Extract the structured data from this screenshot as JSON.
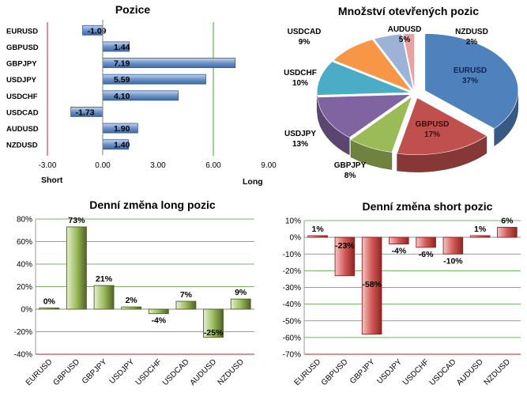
{
  "chart_data": [
    {
      "type": "bar",
      "orientation": "horizontal",
      "title": "Pozice",
      "categories": [
        "EURUSD",
        "GBPUSD",
        "GBPJPY",
        "USDJPY",
        "USDCHF",
        "USDCAD",
        "AUDUSD",
        "NZDUSD"
      ],
      "values": [
        -1.09,
        1.44,
        7.19,
        5.59,
        4.1,
        -1.73,
        1.9,
        1.4
      ],
      "value_labels": [
        "-1.09",
        "1.44",
        "7.19",
        "5.59",
        "4.10",
        "-1.73",
        "1.90",
        "1.40"
      ],
      "xlim": [
        -3,
        9
      ],
      "xticks": [
        "-3.00",
        "0.00",
        "3.00",
        "6.00",
        "9.00"
      ],
      "xtick_values": [
        -3,
        0,
        3,
        6,
        9
      ],
      "left_label": "Short",
      "right_label": "Long",
      "bar_color": "#4f81bd",
      "short_line_color": "#c0504d",
      "long_line_color": "#4f9a3a"
    },
    {
      "type": "pie",
      "title": "Množství otevřených pozic",
      "labels": [
        "EURUSD",
        "GBPUSD",
        "GBPJPY",
        "USDJPY",
        "USDCHF",
        "USDCAD",
        "AUDUSD",
        "NZDUSD"
      ],
      "values": [
        37,
        17,
        8,
        13,
        10,
        9,
        5,
        2
      ],
      "value_labels": [
        "37%",
        "17%",
        "8%",
        "13%",
        "10%",
        "9%",
        "5%",
        "2%"
      ],
      "colors": [
        "#4f81bd",
        "#c0504d",
        "#9bbb59",
        "#8064a2",
        "#4bacc6",
        "#f79646",
        "#9db3d6",
        "#e6a3a2"
      ]
    },
    {
      "type": "bar",
      "title": "Denní změna long pozic",
      "categories": [
        "EURUSD",
        "GBPUSD",
        "GBPJPY",
        "USDJPY",
        "USDCHF",
        "USDCAD",
        "AUDUSD",
        "NZDUSD"
      ],
      "values": [
        0,
        73,
        21,
        2,
        -4,
        7,
        -25,
        9
      ],
      "value_labels": [
        "0%",
        "73%",
        "21%",
        "2%",
        "-4%",
        "7%",
        "-25%",
        "9%"
      ],
      "ylim": [
        -40,
        80
      ],
      "yticks": [
        "-40%",
        "-20%",
        "0%",
        "20%",
        "40%",
        "60%",
        "80%"
      ],
      "ytick_values": [
        -40,
        -20,
        0,
        20,
        40,
        60,
        80
      ],
      "bar_color": "#77933c"
    },
    {
      "type": "bar",
      "title": "Denní změna short pozic",
      "categories": [
        "EURUSD",
        "GBPUSD",
        "GBPJPY",
        "USDJPY",
        "USDCHF",
        "USDCAD",
        "AUDUSD",
        "NZDUSD"
      ],
      "values": [
        1,
        -23,
        -58,
        -4,
        -6,
        -10,
        1,
        6
      ],
      "value_labels": [
        "1%",
        "-23%",
        "-58%",
        "-4%",
        "-6%",
        "-10%",
        "1%",
        "6%"
      ],
      "ylim": [
        -70,
        10
      ],
      "yticks": [
        "-70%",
        "-60%",
        "-50%",
        "-40%",
        "-30%",
        "-20%",
        "-10%",
        "0%",
        "10%"
      ],
      "ytick_values": [
        -70,
        -60,
        -50,
        -40,
        -30,
        -20,
        -10,
        0,
        10
      ],
      "bar_color": "#c0504d"
    }
  ]
}
